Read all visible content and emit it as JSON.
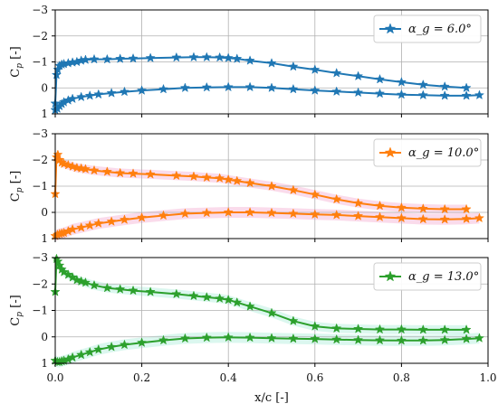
{
  "chart_data": [
    {
      "type": "line",
      "ylabel": "C_p [-]",
      "ylim": [
        -3,
        1
      ],
      "yticks": [
        -3,
        -2,
        -1,
        0,
        1
      ],
      "xlim": [
        0,
        1
      ],
      "xticks": [
        0.0,
        0.2,
        0.4,
        0.6,
        0.8,
        1.0
      ],
      "grid": true,
      "legend_position": "top-right",
      "color": "#1f77b4",
      "series": [
        {
          "name": "α_g = 6.0°",
          "x": [
            0.0,
            0.003,
            0.006,
            0.01,
            0.015,
            0.02,
            0.03,
            0.04,
            0.05,
            0.06,
            0.07,
            0.09,
            0.12,
            0.15,
            0.18,
            0.22,
            0.28,
            0.32,
            0.35,
            0.38,
            0.4,
            0.42,
            0.45,
            0.5,
            0.55,
            0.6,
            0.65,
            0.7,
            0.75,
            0.8,
            0.85,
            0.9,
            0.95
          ],
          "y": [
            0.6,
            -0.5,
            -0.7,
            -0.85,
            -0.9,
            -0.92,
            -0.95,
            -0.98,
            -1.0,
            -1.05,
            -1.08,
            -1.1,
            -1.1,
            -1.12,
            -1.13,
            -1.15,
            -1.17,
            -1.18,
            -1.18,
            -1.17,
            -1.15,
            -1.12,
            -1.05,
            -0.95,
            -0.82,
            -0.7,
            -0.57,
            -0.45,
            -0.33,
            -0.22,
            -0.12,
            -0.05,
            0.0
          ]
        },
        {
          "name": "",
          "x": [
            0.0,
            0.005,
            0.01,
            0.015,
            0.02,
            0.03,
            0.04,
            0.06,
            0.08,
            0.1,
            0.13,
            0.16,
            0.2,
            0.25,
            0.3,
            0.35,
            0.4,
            0.45,
            0.5,
            0.55,
            0.6,
            0.65,
            0.7,
            0.75,
            0.8,
            0.85,
            0.9,
            0.95,
            0.98
          ],
          "y": [
            0.85,
            0.8,
            0.7,
            0.62,
            0.55,
            0.48,
            0.42,
            0.35,
            0.3,
            0.25,
            0.2,
            0.15,
            0.1,
            0.05,
            0.0,
            -0.02,
            -0.03,
            -0.03,
            0.0,
            0.05,
            0.1,
            0.14,
            0.18,
            0.22,
            0.26,
            0.28,
            0.3,
            0.3,
            0.28
          ]
        }
      ]
    },
    {
      "type": "line",
      "ylabel": "C_p [-]",
      "ylim": [
        -3,
        1
      ],
      "yticks": [
        -3,
        -2,
        -1,
        0,
        1
      ],
      "xlim": [
        0,
        1
      ],
      "xticks": [
        0.0,
        0.2,
        0.4,
        0.6,
        0.8,
        1.0
      ],
      "grid": true,
      "legend_position": "top-right",
      "color": "#ff7f0e",
      "band_color": "#f6b8d8",
      "series": [
        {
          "name": "α_g = 10.0°",
          "x": [
            0.0,
            0.003,
            0.006,
            0.01,
            0.015,
            0.02,
            0.03,
            0.04,
            0.05,
            0.06,
            0.07,
            0.09,
            0.12,
            0.15,
            0.18,
            0.22,
            0.28,
            0.32,
            0.35,
            0.38,
            0.4,
            0.42,
            0.45,
            0.5,
            0.55,
            0.6,
            0.65,
            0.7,
            0.75,
            0.8,
            0.85,
            0.9,
            0.95
          ],
          "y": [
            -0.7,
            -2.1,
            -2.2,
            -2.0,
            -1.9,
            -1.85,
            -1.8,
            -1.75,
            -1.7,
            -1.68,
            -1.65,
            -1.6,
            -1.55,
            -1.5,
            -1.48,
            -1.45,
            -1.4,
            -1.37,
            -1.33,
            -1.3,
            -1.25,
            -1.2,
            -1.12,
            -1.0,
            -0.85,
            -0.68,
            -0.5,
            -0.35,
            -0.25,
            -0.18,
            -0.14,
            -0.12,
            -0.12
          ]
        },
        {
          "name": "",
          "x": [
            0.0,
            0.005,
            0.01,
            0.015,
            0.02,
            0.03,
            0.04,
            0.06,
            0.08,
            0.1,
            0.13,
            0.16,
            0.2,
            0.25,
            0.3,
            0.35,
            0.4,
            0.45,
            0.5,
            0.55,
            0.6,
            0.65,
            0.7,
            0.75,
            0.8,
            0.85,
            0.9,
            0.95,
            0.98
          ],
          "y": [
            0.9,
            0.85,
            0.82,
            0.8,
            0.78,
            0.72,
            0.65,
            0.58,
            0.5,
            0.42,
            0.35,
            0.28,
            0.2,
            0.12,
            0.05,
            0.02,
            0.0,
            0.0,
            0.02,
            0.05,
            0.08,
            0.1,
            0.14,
            0.18,
            0.22,
            0.26,
            0.27,
            0.25,
            0.22
          ]
        }
      ]
    },
    {
      "type": "line",
      "ylabel": "C_p [-]",
      "xlabel": "x/c [-]",
      "ylim": [
        -3,
        1
      ],
      "yticks": [
        -3,
        -2,
        -1,
        0,
        1
      ],
      "xlim": [
        0,
        1
      ],
      "xticks": [
        0.0,
        0.2,
        0.4,
        0.6,
        0.8,
        1.0
      ],
      "xticklabels": [
        "0.0",
        "0.2",
        "0.4",
        "0.6",
        "0.8",
        "1.0"
      ],
      "grid": true,
      "legend_position": "top-right",
      "color": "#2ca02c",
      "band_color": "#b8f0e0",
      "series": [
        {
          "name": "α_g = 13.0°",
          "x": [
            0.0,
            0.003,
            0.006,
            0.01,
            0.015,
            0.02,
            0.03,
            0.04,
            0.05,
            0.06,
            0.07,
            0.09,
            0.12,
            0.15,
            0.18,
            0.22,
            0.28,
            0.32,
            0.35,
            0.38,
            0.4,
            0.42,
            0.45,
            0.5,
            0.55,
            0.6,
            0.65,
            0.7,
            0.75,
            0.8,
            0.85,
            0.9,
            0.95
          ],
          "y": [
            -1.7,
            -2.95,
            -2.85,
            -2.7,
            -2.55,
            -2.45,
            -2.35,
            -2.25,
            -2.15,
            -2.1,
            -2.05,
            -1.95,
            -1.85,
            -1.8,
            -1.75,
            -1.7,
            -1.62,
            -1.55,
            -1.5,
            -1.45,
            -1.4,
            -1.3,
            -1.15,
            -0.9,
            -0.6,
            -0.4,
            -0.32,
            -0.3,
            -0.28,
            -0.28,
            -0.27,
            -0.27,
            -0.27
          ]
        },
        {
          "name": "",
          "x": [
            0.0,
            0.005,
            0.01,
            0.015,
            0.02,
            0.03,
            0.04,
            0.06,
            0.08,
            0.1,
            0.13,
            0.16,
            0.2,
            0.25,
            0.3,
            0.35,
            0.4,
            0.45,
            0.5,
            0.55,
            0.6,
            0.65,
            0.7,
            0.75,
            0.8,
            0.85,
            0.9,
            0.95,
            0.98
          ],
          "y": [
            0.9,
            0.95,
            0.95,
            0.92,
            0.9,
            0.85,
            0.78,
            0.68,
            0.58,
            0.48,
            0.38,
            0.3,
            0.22,
            0.13,
            0.06,
            0.03,
            0.02,
            0.03,
            0.05,
            0.07,
            0.08,
            0.1,
            0.12,
            0.13,
            0.14,
            0.14,
            0.12,
            0.08,
            0.05
          ]
        }
      ]
    }
  ]
}
